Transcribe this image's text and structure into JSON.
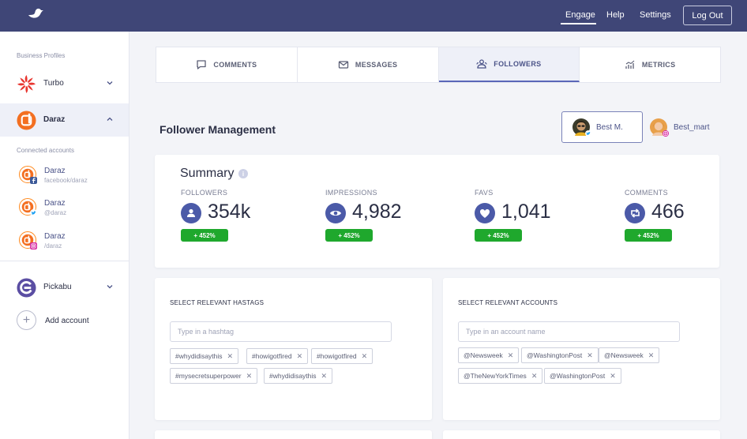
{
  "topbar": {
    "logo_icon": "bird-logo-icon",
    "nav": [
      "Engage",
      "Help",
      "Settings"
    ],
    "logout_label": "Log Out"
  },
  "sidebar": {
    "business_profiles_label": "Business Profiles",
    "profiles": [
      {
        "name": "Turbo",
        "icon": "turbo-logo-icon"
      },
      {
        "name": "Daraz",
        "icon": "daraz-logo-icon"
      },
      {
        "name": "Pickabu",
        "icon": "pickabu-logo-icon"
      }
    ],
    "connected_label": "Connected accounts",
    "accounts": [
      {
        "name": "Daraz",
        "handle": "facebook/daraz",
        "network": "facebook"
      },
      {
        "name": "Daraz",
        "handle": "@daraz",
        "network": "twitter"
      },
      {
        "name": "Daraz",
        "handle": "/daraz",
        "network": "instagram"
      }
    ],
    "add_account_label": "Add account"
  },
  "tabs": [
    {
      "label": "COMMENTS",
      "icon": "comment-icon"
    },
    {
      "label": "MESSAGES",
      "icon": "envelope-icon"
    },
    {
      "label": "FOLLOWERS",
      "icon": "followers-icon"
    },
    {
      "label": "METRICS",
      "icon": "chart-icon"
    }
  ],
  "active_tab": "FOLLOWERS",
  "main": {
    "title": "Follower Management",
    "profile_chips": [
      {
        "name": "Best M.",
        "network": "twitter"
      },
      {
        "name": "Best_mart",
        "network": "instagram"
      }
    ]
  },
  "summary": {
    "title": "Summary",
    "metrics": [
      {
        "label": "FOLLOWERS",
        "value": "354k",
        "change": "+ 452%",
        "icon": "user-icon"
      },
      {
        "label": "IMPRESSIONS",
        "value": "4,982",
        "change": "+ 452%",
        "icon": "eye-icon"
      },
      {
        "label": "FAVS",
        "value": "1,041",
        "change": "+ 452%",
        "icon": "heart-icon"
      },
      {
        "label": "COMMENTS",
        "value": "466",
        "change": "+ 452%",
        "icon": "retweet-icon"
      }
    ]
  },
  "hashtags": {
    "title": "SELECT RELEVANT HASTAGS",
    "placeholder": "Type in a hashtag",
    "tags": [
      "#whydidisaythis",
      "#howigotfired",
      "#howigotfired",
      "#mysecretsuperpower",
      "#whydidisaythis"
    ]
  },
  "accounts_select": {
    "title": "SELECT RELEVANT ACCOUNTS",
    "placeholder": "Type in an account name",
    "tags": [
      "@Newsweek",
      "@WashingtonPost",
      "@Newsweek",
      "@TheNewYorkTimes",
      "@WashingtonPost"
    ]
  },
  "colors": {
    "topbar": "#3f4677",
    "accent": "#4b5aa8",
    "positive": "#1fa82d"
  }
}
